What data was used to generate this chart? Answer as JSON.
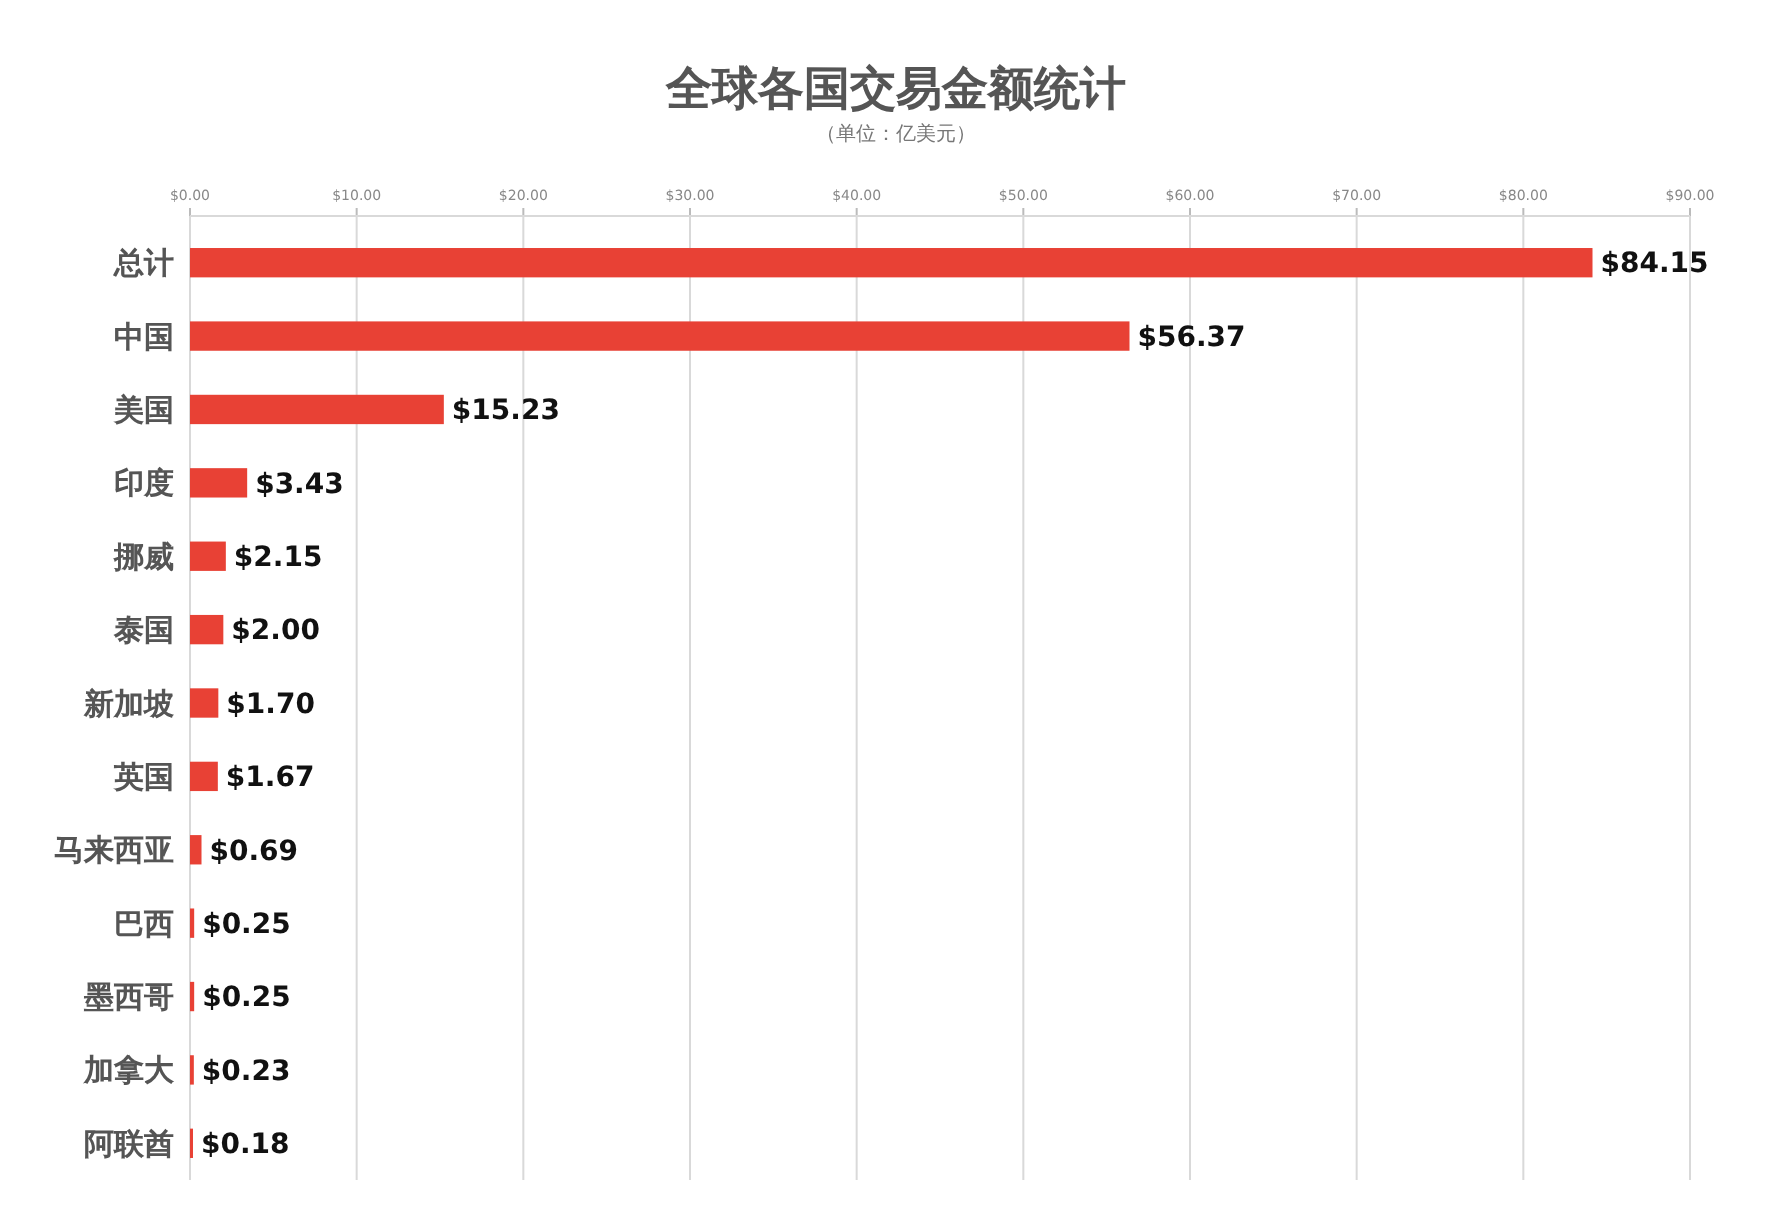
{
  "chart_data": {
    "type": "bar",
    "orientation": "horizontal",
    "title": "全球各国交易金额统计",
    "subtitle": "（单位：亿美元）",
    "categories": [
      "总计",
      "中国",
      "美国",
      "印度",
      "挪威",
      "泰国",
      "新加坡",
      "英国",
      "马来西亚",
      "巴西",
      "墨西哥",
      "加拿大",
      "阿联酋"
    ],
    "values": [
      84.15,
      56.37,
      15.23,
      3.43,
      2.15,
      2.0,
      1.7,
      1.67,
      0.69,
      0.25,
      0.25,
      0.23,
      0.18
    ],
    "value_labels": [
      "$84.15",
      "$56.37",
      "$15.23",
      "$3.43",
      "$2.15",
      "$2.00",
      "$1.70",
      "$1.67",
      "$0.69",
      "$0.25",
      "$0.25",
      "$0.23",
      "$0.18"
    ],
    "color": "#e84135",
    "xlim": [
      0,
      90
    ],
    "xticks": [
      {
        "value": 0,
        "label": "$0.00"
      },
      {
        "value": 10,
        "label": "$10.00"
      },
      {
        "value": 20,
        "label": "$20.00"
      },
      {
        "value": 30,
        "label": "$30.00"
      },
      {
        "value": 40,
        "label": "$40.00"
      },
      {
        "value": 50,
        "label": "$50.00"
      },
      {
        "value": 60,
        "label": "$60.00"
      },
      {
        "value": 70,
        "label": "$70.00"
      },
      {
        "value": 80,
        "label": "$80.00"
      },
      {
        "value": 90,
        "label": "$90.00"
      }
    ],
    "grid": "x"
  }
}
